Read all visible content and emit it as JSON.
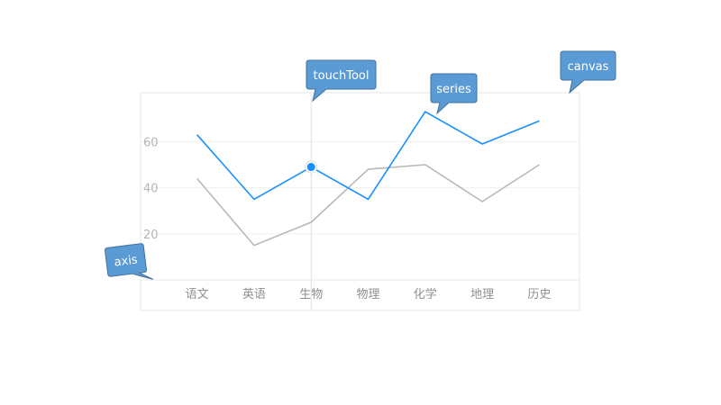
{
  "chart_data": {
    "type": "line",
    "categories": [
      "语文",
      "英语",
      "生物",
      "物理",
      "化学",
      "地理",
      "历史"
    ],
    "series": [
      {
        "values": [
          63,
          35,
          49,
          35,
          73,
          59,
          69
        ],
        "color": "#1890ff"
      },
      {
        "values": [
          44,
          15,
          25,
          48,
          50,
          34,
          50
        ],
        "color": "#b8b8b8"
      }
    ],
    "y_ticks": [
      20,
      40,
      60
    ],
    "ylim": [
      0,
      82
    ],
    "grid": "horizontal",
    "touch_tooltip": {
      "category": "生物",
      "series_index": 0
    }
  },
  "annotations": [
    {
      "id": "touchtool",
      "text": "touchTool"
    },
    {
      "id": "series",
      "text": "series"
    },
    {
      "id": "canvas",
      "text": "canvas"
    },
    {
      "id": "axis",
      "text": "axis"
    }
  ],
  "colors": {
    "callout_fill": "#5b9bd5",
    "callout_stroke": "#41719c",
    "grid": "#f0f0f0",
    "frame": "#e6e6e6"
  }
}
